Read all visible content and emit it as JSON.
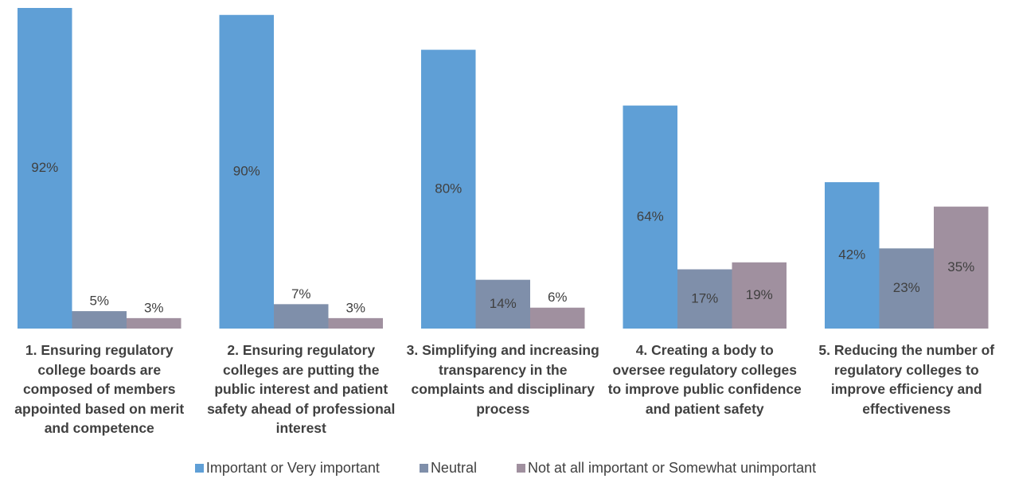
{
  "chart_data": {
    "type": "bar",
    "categories": [
      "1. Ensuring regulatory college boards are composed of members appointed based on merit and competence",
      "2. Ensuring regulatory colleges are putting the public interest and patient safety ahead of professional interest",
      "3. Simplifying and increasing transparency in the complaints and disciplinary process",
      "4. Creating a body to oversee regulatory colleges to improve public confidence and patient safety",
      "5. Reducing the number of regulatory colleges to improve efficiency and effectiveness"
    ],
    "series": [
      {
        "name": "Important or Very important",
        "color": "#5f9fd6",
        "values": [
          92,
          90,
          80,
          64,
          42
        ],
        "value_labels": [
          "92%",
          "90%",
          "80%",
          "64%",
          "42%"
        ]
      },
      {
        "name": "Neutral",
        "color": "#7f8faa",
        "values": [
          5,
          7,
          14,
          17,
          23
        ],
        "value_labels": [
          "5%",
          "7%",
          "14%",
          "17%",
          "23%"
        ]
      },
      {
        "name": "Not at all important or Somewhat unimportant",
        "color": "#a0909f",
        "values": [
          3,
          3,
          6,
          19,
          35
        ],
        "value_labels": [
          "3%",
          "3%",
          "6%",
          "19%",
          "35%"
        ]
      }
    ],
    "legend": "bottom"
  }
}
